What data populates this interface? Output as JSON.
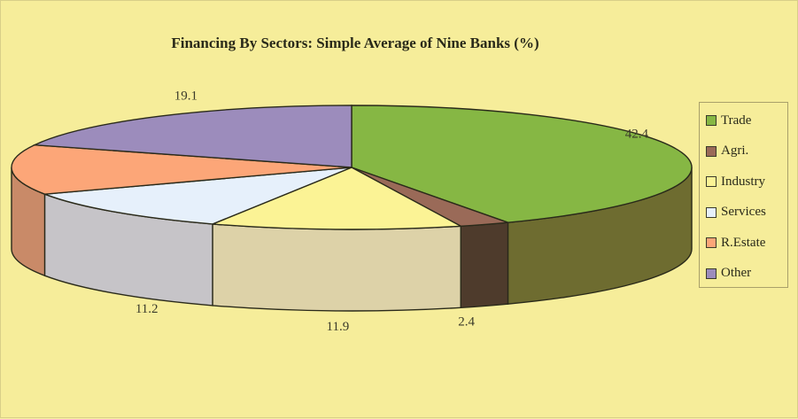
{
  "chart_data": {
    "type": "pie",
    "title": "Financing By Sectors: Simple Average of Nine Banks (%)",
    "labels": [
      "Trade",
      "Agri.",
      "Industry",
      "Services",
      "R.Estate",
      "Other"
    ],
    "values": [
      42.4,
      2.4,
      11.9,
      11.2,
      13.0,
      19.1
    ],
    "data_labels": [
      "42.4",
      "2.4",
      "11.9",
      "11.2",
      "",
      "19.1"
    ],
    "legend_position": "right",
    "three_d": true
  },
  "colors": {
    "top": [
      "#86b744",
      "#9a6a58",
      "#fbf395",
      "#e6f0fb",
      "#fca678",
      "#9c8cbc"
    ],
    "side": [
      "#6e6c30",
      "#4e3b2c",
      "#ddd2a8",
      "#c6c4c8",
      "#c98a68",
      "#6b6a80"
    ]
  }
}
